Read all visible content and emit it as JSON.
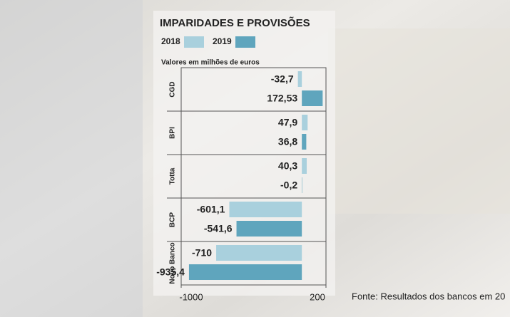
{
  "chart_data": {
    "type": "bar",
    "orientation": "horizontal",
    "title": "IMPARIDADES E PROVISÕES",
    "subtitle": "Valores em milhões de euros",
    "source": "Fonte: Resultados dos bancos em 20",
    "categories": [
      "CGD",
      "BPI",
      "Totta",
      "BCP",
      "Novo Banco"
    ],
    "series": [
      {
        "name": "2018",
        "color": "#a9d0dd",
        "values": [
          -32.7,
          47.9,
          40.3,
          -601.1,
          -710
        ],
        "value_labels": [
          "-32,7",
          "47,9",
          "40,3",
          "-601,1",
          "-710"
        ]
      },
      {
        "name": "2019",
        "color": "#5fa5bd",
        "values": [
          172.53,
          36.8,
          -0.2,
          -541.6,
          -935.4
        ],
        "value_labels": [
          "172,53",
          "36,8",
          "-0,2",
          "-541,6",
          "-935,4"
        ]
      }
    ],
    "xlim": [
      -1000,
      200
    ],
    "xticks": [
      -1000,
      200
    ]
  }
}
